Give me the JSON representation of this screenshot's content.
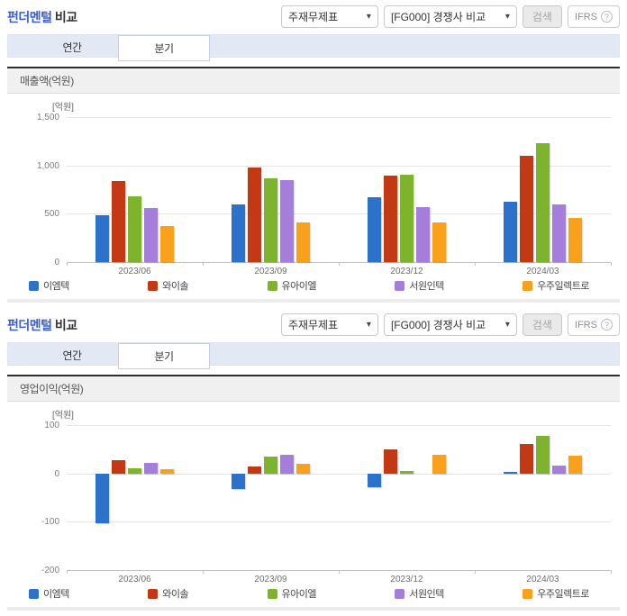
{
  "sections": [
    {
      "title_highlight": "펀더멘털",
      "title_rest": "비교",
      "controls": {
        "statement_select": "주재무제표",
        "compare_select": "[FG000] 경쟁사 비교",
        "search_label": "검색",
        "ifrs_label": "IFRS",
        "help_icon": "?",
        "chevron_icon": "▾"
      },
      "tabs": [
        {
          "label": "연간",
          "active": false
        },
        {
          "label": "분기",
          "active": true
        }
      ]
    },
    {
      "title_highlight": "펀더멘털",
      "title_rest": "비교",
      "controls": {
        "statement_select": "주재무제표",
        "compare_select": "[FG000] 경쟁사 비교",
        "search_label": "검색",
        "ifrs_label": "IFRS",
        "help_icon": "?",
        "chevron_icon": "▾"
      },
      "tabs": [
        {
          "label": "연간",
          "active": false
        },
        {
          "label": "분기",
          "active": true
        }
      ]
    }
  ],
  "chart_data": [
    {
      "type": "bar",
      "title": "매출액(억원)",
      "unit_label": "[억원]",
      "categories": [
        "2023/06",
        "2023/09",
        "2023/12",
        "2024/03"
      ],
      "series": [
        {
          "name": "이엠텍",
          "color": "#2c71ca",
          "values": [
            485,
            600,
            675,
            620
          ]
        },
        {
          "name": "와이솔",
          "color": "#c23913",
          "values": [
            840,
            980,
            890,
            1100
          ]
        },
        {
          "name": "유아이엘",
          "color": "#7eb42d",
          "values": [
            680,
            865,
            900,
            1230
          ]
        },
        {
          "name": "서원인텍",
          "color": "#a57edb",
          "values": [
            555,
            850,
            570,
            595
          ]
        },
        {
          "name": "우주일렉트로",
          "color": "#f9a11b",
          "values": [
            375,
            410,
            410,
            460
          ]
        }
      ],
      "ylim": [
        0,
        1500
      ],
      "yticks": [
        0,
        500,
        1000,
        1500
      ],
      "grid": true,
      "legend_position": "bottom"
    },
    {
      "type": "bar",
      "title": "영업이익(억원)",
      "unit_label": "[억원]",
      "categories": [
        "2023/06",
        "2023/09",
        "2023/12",
        "2024/03"
      ],
      "series": [
        {
          "name": "이엠텍",
          "color": "#2c71ca",
          "values": [
            -103,
            -33,
            -28,
            4
          ]
        },
        {
          "name": "와이솔",
          "color": "#c23913",
          "values": [
            27,
            14,
            50,
            60
          ]
        },
        {
          "name": "유아이엘",
          "color": "#7eb42d",
          "values": [
            10,
            34,
            5,
            78
          ]
        },
        {
          "name": "서원인텍",
          "color": "#a57edb",
          "values": [
            22,
            38,
            0,
            17
          ]
        },
        {
          "name": "우주일렉트로",
          "color": "#f9a11b",
          "values": [
            9,
            19,
            39,
            36
          ]
        }
      ],
      "ylim": [
        -200,
        100
      ],
      "yticks": [
        100,
        0,
        -100,
        -200
      ],
      "grid": true,
      "legend_position": "bottom"
    }
  ]
}
